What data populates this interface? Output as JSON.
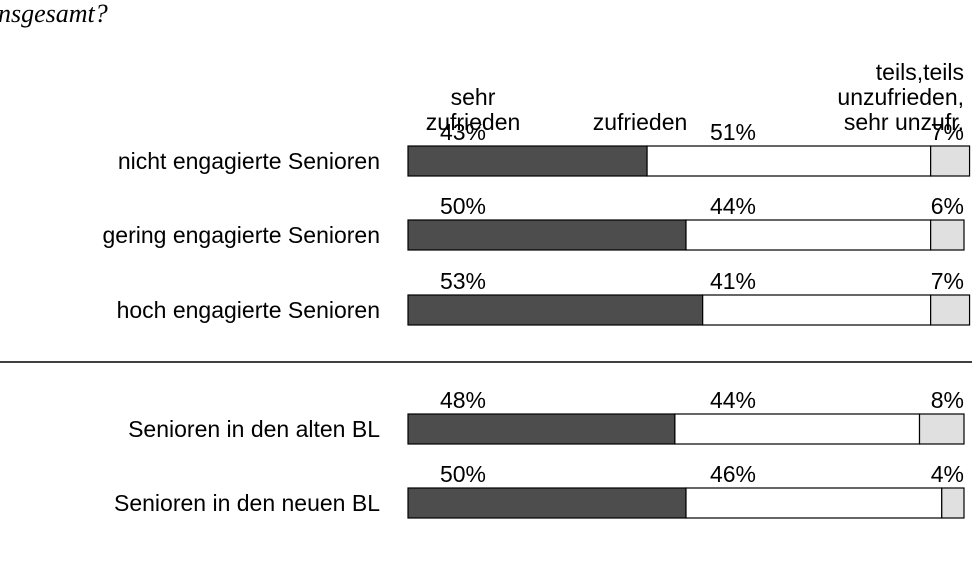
{
  "chart_data": {
    "type": "bar",
    "orientation": "horizontal",
    "stacked": true,
    "title": "nsgesamt?",
    "categories": [
      "nicht engagierte Senioren",
      "gering engagierte Senioren",
      "hoch engagierte Senioren",
      "Senioren in den alten BL",
      "Senioren in den neuen BL"
    ],
    "series": [
      {
        "name": "sehr\nzufrieden",
        "color": "#4d4d4d",
        "values": [
          43,
          50,
          53,
          48,
          50
        ],
        "value_labels": [
          "43%",
          "50%",
          "53%",
          "48%",
          "50%"
        ]
      },
      {
        "name": "zufrieden",
        "color": "#ffffff",
        "values": [
          51,
          44,
          41,
          44,
          46
        ],
        "value_labels": [
          "51%",
          "44%",
          "41%",
          "44%",
          "46%"
        ]
      },
      {
        "name": "teils,teils\nunzufrieden,\nsehr unzufr.",
        "color": "#e0e0e0",
        "values": [
          7,
          6,
          7,
          8,
          4
        ],
        "value_labels": [
          "7%",
          "6%",
          "7%",
          "8%",
          "4%"
        ]
      }
    ]
  }
}
